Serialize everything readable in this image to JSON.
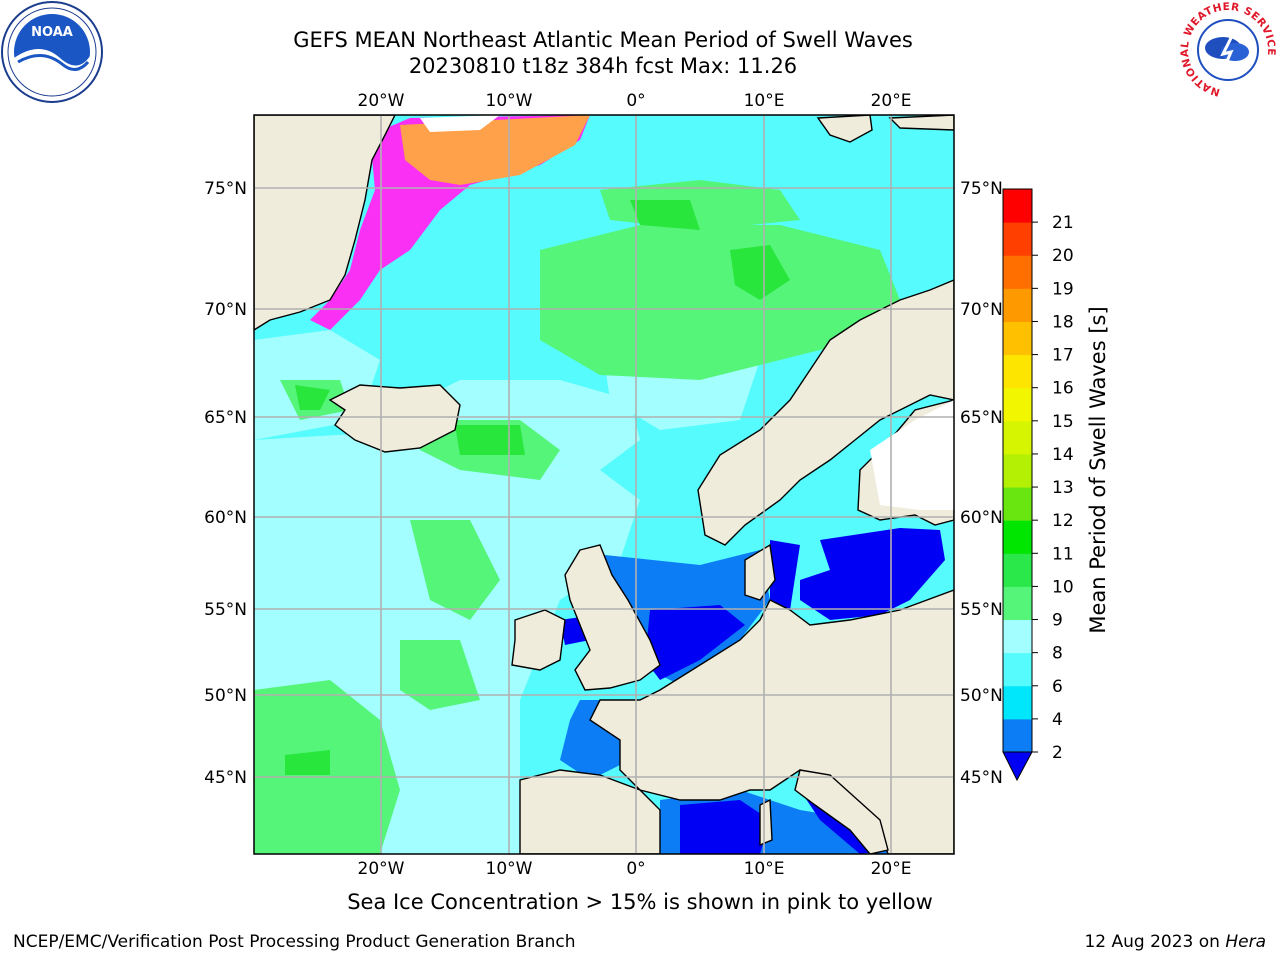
{
  "title": {
    "line1": "GEFS MEAN Northeast Atlantic Mean Period of Swell Waves",
    "line2": "20230810 t18z 384h fcst   Max: 11.26"
  },
  "map": {
    "lon_range": [
      -30,
      25
    ],
    "lat_range": [
      41,
      78
    ],
    "lon_ticks": [
      {
        "value": -20,
        "label": "20°W"
      },
      {
        "value": -10,
        "label": "10°W"
      },
      {
        "value": 0,
        "label": "0°"
      },
      {
        "value": 10,
        "label": "10°E"
      },
      {
        "value": 20,
        "label": "20°E"
      }
    ],
    "lat_ticks": [
      {
        "value": 75,
        "label": "75°N"
      },
      {
        "value": 70,
        "label": "70°N"
      },
      {
        "value": 65,
        "label": "65°N"
      },
      {
        "value": 60,
        "label": "60°N"
      },
      {
        "value": 55,
        "label": "55°N"
      },
      {
        "value": 50,
        "label": "50°N"
      },
      {
        "value": 45,
        "label": "45°N"
      }
    ],
    "colors": {
      "land": "#efecdc",
      "ocean_base": "#55fbfd",
      "light_swell": "#a3ffff",
      "mid_green": "#55f57a",
      "bright_green": "#28e63c",
      "shallow_blue": "#0d7df6",
      "deep_blue": "#0000f5",
      "sea_ice_pink": "#fb30f5",
      "sea_ice_orange": "#ffa04a",
      "grid": "#b0b0b0",
      "coast": "#000000"
    }
  },
  "colorbar": {
    "label": "Mean Period of Swell Waves [s]",
    "levels": [
      2,
      4,
      6,
      8,
      9,
      10,
      11,
      12,
      13,
      14,
      15,
      16,
      17,
      18,
      19,
      20,
      21
    ],
    "colors": [
      "#0d7df6",
      "#00e6fb",
      "#55fbfd",
      "#a3ffff",
      "#55f57a",
      "#2be84a",
      "#00e600",
      "#69e610",
      "#b3f003",
      "#d5f500",
      "#f2f700",
      "#fee500",
      "#ffc000",
      "#fe9a00",
      "#fe6f00",
      "#fe3f00",
      "#fe0000"
    ],
    "under_color": "#0000f5"
  },
  "logos": {
    "noaa_text": "NOAA",
    "nws_ring_text": "NATIONAL WEATHER SERVICE"
  },
  "footer": {
    "note": "Sea Ice Concentration > 15% is shown in pink to yellow",
    "credit_left": "NCEP/EMC/Verification Post Processing Product Generation Branch",
    "credit_date": "12 Aug 2023 on ",
    "credit_machine": "Hera"
  }
}
